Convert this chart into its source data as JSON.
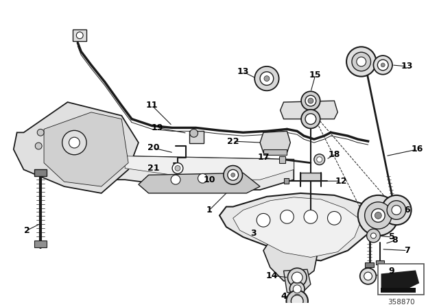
{
  "bg_color": "#ffffff",
  "line_color": "#1a1a1a",
  "label_color": "#000000",
  "diagram_number": "358870",
  "fig_width": 6.4,
  "fig_height": 4.48,
  "dpi": 100
}
